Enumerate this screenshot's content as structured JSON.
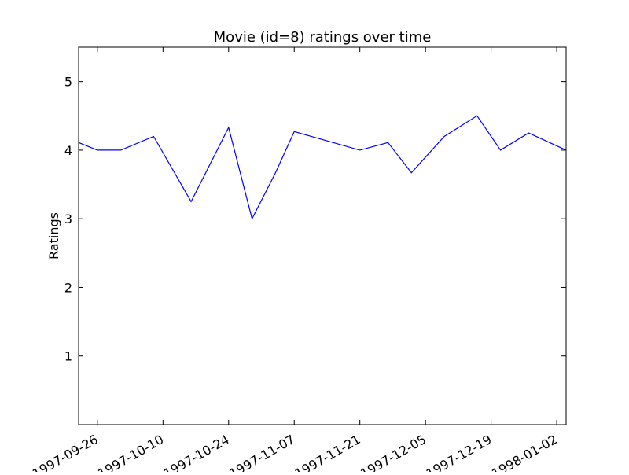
{
  "chart_data": {
    "type": "line",
    "title": "Movie (id=8) ratings over time",
    "xlabel": "",
    "ylabel": "Ratings",
    "xlim": [
      "1997-09-22",
      "1998-01-04"
    ],
    "ylim": [
      0,
      5.5
    ],
    "grid": false,
    "x_ticks": [
      "1997-09-26",
      "1997-10-10",
      "1997-10-24",
      "1997-11-07",
      "1997-11-21",
      "1997-12-05",
      "1997-12-19",
      "1998-01-02"
    ],
    "y_ticks": [
      1,
      2,
      3,
      4,
      5
    ],
    "series": [
      {
        "color": "#0000ff",
        "x": [
          "1997-09-22",
          "1997-09-26",
          "1997-10-01",
          "1997-10-08",
          "1997-10-16",
          "1997-10-24",
          "1997-10-29",
          "1997-11-03",
          "1997-11-07",
          "1997-11-21",
          "1997-11-27",
          "1997-12-02",
          "1997-12-09",
          "1997-12-16",
          "1997-12-21",
          "1997-12-27",
          "1998-01-04"
        ],
        "values": [
          4.11,
          4.0,
          4.0,
          4.2,
          3.25,
          4.33,
          3.0,
          3.67,
          4.27,
          4.0,
          4.11,
          3.67,
          4.2,
          4.5,
          4.0,
          4.25,
          4.0
        ]
      }
    ]
  }
}
